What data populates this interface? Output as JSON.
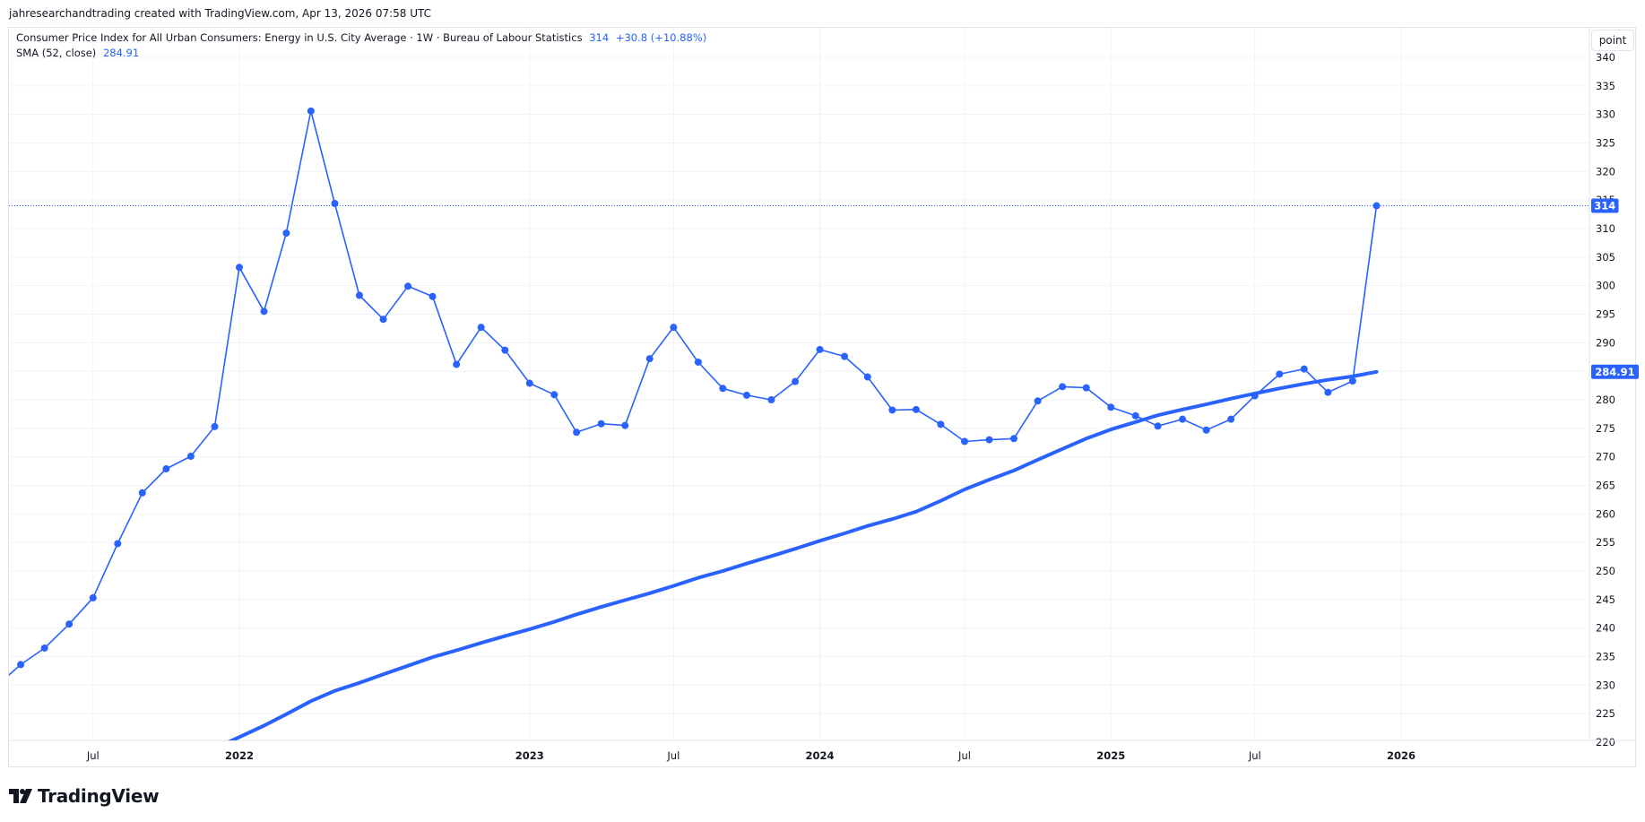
{
  "attribution": "jahresearchandtrading created with TradingView.com, Apr 13, 2026 07:58 UTC",
  "legend": {
    "title": "Consumer Price Index for All Urban Consumers: Energy in U.S. City Average · 1W · Bureau of Labour Statistics",
    "last_value": "314",
    "change": "+30.8 (+10.88%)",
    "sma_label": "SMA (52, close)",
    "sma_value": "284.91"
  },
  "scale_mode_button": "point",
  "price_label_last": "314",
  "price_label_sma": "284.91",
  "footer": {
    "brand": "TradingView"
  },
  "colors": {
    "series": "#2962ff",
    "sma": "#2962ff",
    "grid": "#f0f3fa",
    "text": "#131722"
  },
  "chart_data": {
    "type": "line",
    "x_axis_type": "date",
    "ylim": [
      220,
      340
    ],
    "y_ticks": [
      220,
      225,
      230,
      235,
      240,
      245,
      250,
      255,
      260,
      265,
      270,
      275,
      280,
      285,
      290,
      295,
      300,
      305,
      310,
      315,
      320,
      325,
      330,
      335,
      340
    ],
    "x_ticks": [
      {
        "date": "2021-07-01",
        "label": "Jul",
        "bold": false
      },
      {
        "date": "2022-01-01",
        "label": "2022",
        "bold": true
      },
      {
        "date": "2023-01-01",
        "label": "2023",
        "bold": true
      },
      {
        "date": "2023-07-01",
        "label": "Jul",
        "bold": false
      },
      {
        "date": "2024-01-01",
        "label": "2024",
        "bold": true
      },
      {
        "date": "2024-07-01",
        "label": "Jul",
        "bold": false
      },
      {
        "date": "2025-01-01",
        "label": "2025",
        "bold": true
      },
      {
        "date": "2025-07-01",
        "label": "Jul",
        "bold": false
      },
      {
        "date": "2026-01-01",
        "label": "2026",
        "bold": true
      }
    ],
    "grid": true,
    "series": [
      {
        "name": "Consumer Price Index for All Urban Consumers: Energy in U.S. City Average",
        "style": "line-with-markers",
        "points": [
          [
            "2021-03-01",
            229.8
          ],
          [
            "2021-04-01",
            233.6
          ],
          [
            "2021-05-01",
            236.5
          ],
          [
            "2021-06-01",
            240.7
          ],
          [
            "2021-07-01",
            245.3
          ],
          [
            "2021-08-01",
            254.8
          ],
          [
            "2021-09-01",
            263.7
          ],
          [
            "2021-10-01",
            267.9
          ],
          [
            "2021-11-01",
            270.1
          ],
          [
            "2021-12-01",
            275.3
          ],
          [
            "2022-01-01",
            303.2
          ],
          [
            "2022-02-01",
            295.5
          ],
          [
            "2022-03-01",
            309.2
          ],
          [
            "2022-04-01",
            330.6
          ],
          [
            "2022-05-01",
            314.4
          ],
          [
            "2022-06-01",
            298.3
          ],
          [
            "2022-07-01",
            294.1
          ],
          [
            "2022-08-01",
            299.9
          ],
          [
            "2022-09-01",
            298.1
          ],
          [
            "2022-10-01",
            286.2
          ],
          [
            "2022-11-01",
            292.7
          ],
          [
            "2022-12-01",
            288.7
          ],
          [
            "2023-01-01",
            282.9
          ],
          [
            "2023-02-01",
            280.9
          ],
          [
            "2023-03-01",
            274.3
          ],
          [
            "2023-04-01",
            275.8
          ],
          [
            "2023-05-01",
            275.5
          ],
          [
            "2023-06-01",
            287.2
          ],
          [
            "2023-07-01",
            292.7
          ],
          [
            "2023-08-01",
            286.6
          ],
          [
            "2023-09-01",
            282.0
          ],
          [
            "2023-10-01",
            280.8
          ],
          [
            "2023-11-01",
            280.0
          ],
          [
            "2023-12-01",
            283.2
          ],
          [
            "2024-01-01",
            288.8
          ],
          [
            "2024-02-01",
            287.6
          ],
          [
            "2024-03-01",
            284.0
          ],
          [
            "2024-04-01",
            278.2
          ],
          [
            "2024-05-01",
            278.3
          ],
          [
            "2024-06-01",
            275.7
          ],
          [
            "2024-07-01",
            272.7
          ],
          [
            "2024-08-01",
            273.0
          ],
          [
            "2024-09-01",
            273.2
          ],
          [
            "2024-10-01",
            279.8
          ],
          [
            "2024-11-01",
            282.3
          ],
          [
            "2024-12-01",
            282.1
          ],
          [
            "2025-01-01",
            278.7
          ],
          [
            "2025-02-01",
            277.2
          ],
          [
            "2025-03-01",
            275.4
          ],
          [
            "2025-04-01",
            276.6
          ],
          [
            "2025-05-01",
            274.7
          ],
          [
            "2025-06-01",
            276.6
          ],
          [
            "2025-07-01",
            280.7
          ],
          [
            "2025-08-01",
            284.5
          ],
          [
            "2025-09-01",
            285.4
          ],
          [
            "2025-10-01",
            281.3
          ],
          [
            "2025-11-01",
            283.3
          ],
          [
            "2025-12-01",
            314.0
          ]
        ]
      },
      {
        "name": "SMA (52, close)",
        "style": "thick-line",
        "points": [
          [
            "2021-12-10",
            219.5
          ],
          [
            "2022-01-01",
            220.9
          ],
          [
            "2022-02-01",
            222.9
          ],
          [
            "2022-03-01",
            224.9
          ],
          [
            "2022-04-01",
            227.2
          ],
          [
            "2022-05-01",
            229.0
          ],
          [
            "2022-06-01",
            230.4
          ],
          [
            "2022-07-01",
            231.9
          ],
          [
            "2022-08-01",
            233.4
          ],
          [
            "2022-09-01",
            234.9
          ],
          [
            "2022-10-01",
            236.1
          ],
          [
            "2022-11-01",
            237.4
          ],
          [
            "2022-12-01",
            238.6
          ],
          [
            "2023-01-01",
            239.8
          ],
          [
            "2023-02-01",
            241.1
          ],
          [
            "2023-03-01",
            242.4
          ],
          [
            "2023-04-01",
            243.7
          ],
          [
            "2023-05-01",
            244.9
          ],
          [
            "2023-06-01",
            246.1
          ],
          [
            "2023-07-01",
            247.4
          ],
          [
            "2023-08-01",
            248.8
          ],
          [
            "2023-09-01",
            250.0
          ],
          [
            "2023-10-01",
            251.3
          ],
          [
            "2023-11-01",
            252.6
          ],
          [
            "2023-12-01",
            253.9
          ],
          [
            "2024-01-01",
            255.3
          ],
          [
            "2024-02-01",
            256.6
          ],
          [
            "2024-03-01",
            257.9
          ],
          [
            "2024-04-01",
            259.1
          ],
          [
            "2024-05-01",
            260.4
          ],
          [
            "2024-06-01",
            262.3
          ],
          [
            "2024-07-01",
            264.3
          ],
          [
            "2024-08-01",
            266.0
          ],
          [
            "2024-09-01",
            267.6
          ],
          [
            "2024-10-01",
            269.5
          ],
          [
            "2024-11-01",
            271.4
          ],
          [
            "2024-12-01",
            273.2
          ],
          [
            "2025-01-01",
            274.8
          ],
          [
            "2025-02-01",
            276.1
          ],
          [
            "2025-03-01",
            277.3
          ],
          [
            "2025-04-01",
            278.3
          ],
          [
            "2025-05-01",
            279.2
          ],
          [
            "2025-06-01",
            280.2
          ],
          [
            "2025-07-01",
            281.1
          ],
          [
            "2025-08-01",
            282.0
          ],
          [
            "2025-09-01",
            282.8
          ],
          [
            "2025-10-01",
            283.5
          ],
          [
            "2025-11-01",
            284.1
          ],
          [
            "2025-12-01",
            284.9
          ]
        ]
      }
    ],
    "last_value_line": 314
  }
}
